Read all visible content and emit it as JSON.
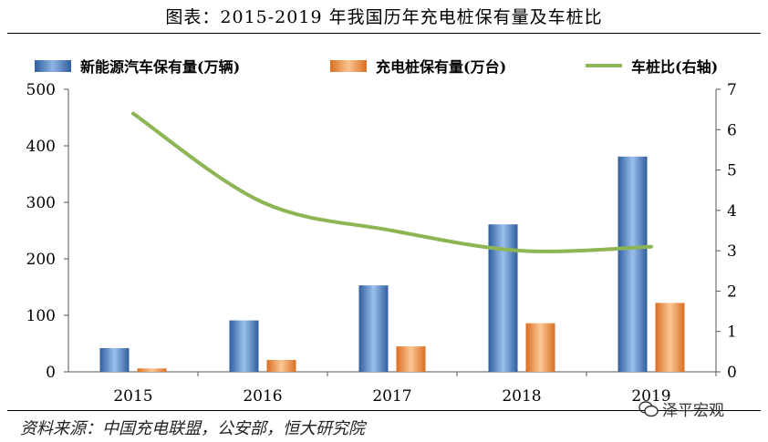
{
  "title": "图表：2015-2019 年我国历年充电桩保有量及车桩比",
  "source": "资料来源：中国充电联盟，公安部，恒大研究院",
  "watermark": "泽平宏观",
  "colors": {
    "nev": "#4a7ec2",
    "pile": "#ee8a3a",
    "ratio": "#8db554"
  },
  "chart_data": {
    "type": "bar",
    "categories": [
      "2015",
      "2016",
      "2017",
      "2018",
      "2019"
    ],
    "series": [
      {
        "name": "新能源汽车保有量(万辆)",
        "type": "bar",
        "axis": "left",
        "values": [
          42,
          91,
          153,
          261,
          381
        ]
      },
      {
        "name": "充电桩保有量(万台)",
        "type": "bar",
        "axis": "left",
        "values": [
          6,
          21,
          45,
          86,
          122
        ]
      },
      {
        "name": "车桩比(右轴)",
        "type": "line",
        "axis": "right",
        "values": [
          6.4,
          4.2,
          3.5,
          3.0,
          3.1
        ]
      }
    ],
    "y_left": {
      "min": 0,
      "max": 500,
      "ticks": [
        0,
        100,
        200,
        300,
        400,
        500
      ]
    },
    "y_right": {
      "min": 0,
      "max": 7,
      "ticks": [
        0,
        1,
        2,
        3,
        4,
        5,
        6,
        7
      ]
    },
    "legend_position": "top"
  }
}
